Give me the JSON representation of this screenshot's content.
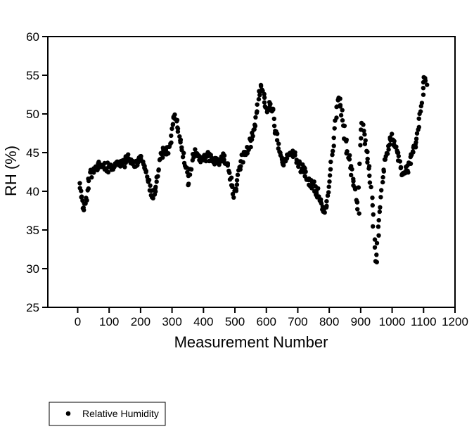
{
  "figure": {
    "background_color": "#ffffff",
    "foreground_color": "#000000"
  },
  "chart_data": {
    "type": "scatter",
    "title": "",
    "xlabel": "Measurement Number",
    "ylabel": "RH (%)",
    "xlim": [
      -95,
      1200
    ],
    "ylim": [
      25,
      60
    ],
    "x_ticks": [
      0,
      100,
      200,
      300,
      400,
      500,
      600,
      700,
      800,
      900,
      1000,
      1100,
      1200
    ],
    "y_ticks": [
      25,
      30,
      35,
      40,
      45,
      50,
      55,
      60
    ],
    "grid": false,
    "marker_color": "#000000",
    "legend": {
      "position": "below-plot-left",
      "entries": [
        {
          "label": "Relative Humidity",
          "marker": "filled-circle",
          "color": "#000000"
        }
      ]
    },
    "series": [
      {
        "name": "Relative Humidity",
        "marker": "filled-circle",
        "color": "#000000",
        "x_range_of_data": [
          5,
          1110
        ],
        "approx_point_count": 1100,
        "trace_comment": "band center trace sampled from plot: [measurement, RH_percent, band_halfwidth_RH]",
        "trace": [
          [
            5,
            41.0,
            1.0
          ],
          [
            10,
            40.0,
            1.6
          ],
          [
            15,
            38.6,
            1.0
          ],
          [
            20,
            37.9,
            0.6
          ],
          [
            25,
            38.4,
            0.8
          ],
          [
            32,
            40.6,
            1.0
          ],
          [
            40,
            42.4,
            0.8
          ],
          [
            50,
            42.6,
            0.8
          ],
          [
            60,
            42.9,
            0.8
          ],
          [
            70,
            43.3,
            0.8
          ],
          [
            80,
            43.3,
            0.8
          ],
          [
            90,
            42.8,
            0.9
          ],
          [
            100,
            43.4,
            0.8
          ],
          [
            110,
            43.1,
            0.8
          ],
          [
            120,
            43.4,
            0.7
          ],
          [
            130,
            43.6,
            0.7
          ],
          [
            140,
            43.3,
            0.7
          ],
          [
            150,
            43.9,
            0.8
          ],
          [
            160,
            44.4,
            0.8
          ],
          [
            170,
            44.0,
            0.7
          ],
          [
            180,
            43.4,
            0.7
          ],
          [
            190,
            43.9,
            0.7
          ],
          [
            198,
            44.5,
            0.6
          ],
          [
            205,
            43.6,
            0.8
          ],
          [
            215,
            42.6,
            0.9
          ],
          [
            225,
            41.0,
            1.0
          ],
          [
            235,
            39.8,
            0.7
          ],
          [
            243,
            39.6,
            0.6
          ],
          [
            250,
            41.0,
            0.9
          ],
          [
            258,
            43.0,
            1.0
          ],
          [
            266,
            44.7,
            0.8
          ],
          [
            273,
            45.3,
            0.7
          ],
          [
            280,
            44.9,
            0.8
          ],
          [
            287,
            45.4,
            0.8
          ],
          [
            293,
            46.4,
            0.8
          ],
          [
            299,
            48.0,
            0.9
          ],
          [
            305,
            49.5,
            0.6
          ],
          [
            309,
            49.8,
            0.5
          ],
          [
            314,
            49.1,
            0.7
          ],
          [
            321,
            47.7,
            0.8
          ],
          [
            328,
            46.3,
            0.7
          ],
          [
            335,
            44.7,
            0.8
          ],
          [
            342,
            42.9,
            0.8
          ],
          [
            350,
            41.2,
            0.8
          ],
          [
            357,
            42.2,
            0.8
          ],
          [
            365,
            44.6,
            1.0
          ],
          [
            375,
            45.0,
            0.8
          ],
          [
            385,
            44.3,
            0.8
          ],
          [
            395,
            44.1,
            0.8
          ],
          [
            405,
            44.4,
            0.8
          ],
          [
            415,
            44.6,
            0.8
          ],
          [
            425,
            44.1,
            0.8
          ],
          [
            435,
            43.8,
            0.8
          ],
          [
            445,
            44.0,
            0.8
          ],
          [
            455,
            44.3,
            0.8
          ],
          [
            465,
            44.2,
            0.8
          ],
          [
            475,
            43.5,
            0.8
          ],
          [
            483,
            42.2,
            0.8
          ],
          [
            490,
            40.7,
            0.8
          ],
          [
            497,
            39.7,
            0.6
          ],
          [
            505,
            40.4,
            0.8
          ],
          [
            512,
            42.1,
            0.8
          ],
          [
            520,
            43.9,
            0.8
          ],
          [
            530,
            44.7,
            0.8
          ],
          [
            540,
            45.2,
            0.8
          ],
          [
            548,
            46.2,
            0.8
          ],
          [
            556,
            47.2,
            0.8
          ],
          [
            563,
            48.4,
            0.9
          ],
          [
            570,
            50.2,
            1.0
          ],
          [
            577,
            52.2,
            1.0
          ],
          [
            583,
            53.1,
            0.7
          ],
          [
            590,
            52.7,
            0.8
          ],
          [
            597,
            51.3,
            0.9
          ],
          [
            604,
            50.5,
            0.8
          ],
          [
            611,
            51.3,
            0.7
          ],
          [
            618,
            50.6,
            0.8
          ],
          [
            625,
            49.0,
            0.8
          ],
          [
            632,
            47.2,
            0.8
          ],
          [
            640,
            45.4,
            0.8
          ],
          [
            648,
            43.9,
            0.8
          ],
          [
            656,
            43.3,
            0.7
          ],
          [
            665,
            44.5,
            0.8
          ],
          [
            675,
            45.0,
            0.8
          ],
          [
            685,
            45.0,
            0.8
          ],
          [
            695,
            44.2,
            0.8
          ],
          [
            705,
            43.3,
            0.8
          ],
          [
            715,
            42.8,
            0.8
          ],
          [
            725,
            42.0,
            0.8
          ],
          [
            735,
            41.2,
            0.8
          ],
          [
            745,
            40.8,
            0.8
          ],
          [
            755,
            40.4,
            0.8
          ],
          [
            765,
            39.7,
            0.8
          ],
          [
            775,
            38.5,
            0.8
          ],
          [
            783,
            37.4,
            0.6
          ],
          [
            790,
            37.8,
            0.5
          ],
          [
            796,
            39.5,
            0.4
          ],
          [
            802,
            41.8,
            0.4
          ],
          [
            808,
            44.2,
            0.4
          ],
          [
            814,
            46.6,
            0.5
          ],
          [
            820,
            49.2,
            0.9
          ],
          [
            827,
            51.8,
            0.9
          ],
          [
            834,
            51.6,
            0.8
          ],
          [
            841,
            49.8,
            1.0
          ],
          [
            849,
            47.3,
            1.0
          ],
          [
            857,
            45.7,
            1.0
          ],
          [
            865,
            44.2,
            1.0
          ],
          [
            872,
            42.7,
            0.9
          ],
          [
            880,
            40.7,
            1.0
          ],
          [
            887,
            38.7,
            0.8
          ],
          [
            893,
            37.2,
            0.5
          ],
          [
            899,
            46.3,
            1.4
          ],
          [
            905,
            48.5,
            1.0
          ],
          [
            911,
            47.3,
            1.0
          ],
          [
            916,
            45.6,
            0.4
          ],
          [
            921,
            44.4,
            0.4
          ],
          [
            926,
            43.1,
            0.4
          ],
          [
            930,
            41.7,
            0.4
          ],
          [
            934,
            40.1,
            0.4
          ],
          [
            937,
            38.2,
            0.4
          ],
          [
            940,
            36.2,
            0.4
          ],
          [
            943,
            34.0,
            0.4
          ],
          [
            946,
            31.8,
            0.4
          ],
          [
            948,
            30.4,
            0.3
          ],
          [
            951,
            31.8,
            0.4
          ],
          [
            954,
            33.8,
            0.4
          ],
          [
            958,
            36.0,
            0.4
          ],
          [
            963,
            38.2,
            0.4
          ],
          [
            968,
            40.6,
            0.4
          ],
          [
            974,
            43.0,
            0.5
          ],
          [
            980,
            44.4,
            0.7
          ],
          [
            987,
            45.6,
            0.8
          ],
          [
            993,
            46.5,
            0.7
          ],
          [
            999,
            46.9,
            0.6
          ],
          [
            1006,
            46.3,
            0.8
          ],
          [
            1013,
            45.2,
            0.8
          ],
          [
            1021,
            44.1,
            0.9
          ],
          [
            1029,
            43.0,
            0.9
          ],
          [
            1037,
            42.3,
            0.9
          ],
          [
            1045,
            42.7,
            0.8
          ],
          [
            1053,
            43.5,
            0.9
          ],
          [
            1061,
            44.4,
            0.9
          ],
          [
            1069,
            45.2,
            0.8
          ],
          [
            1076,
            46.3,
            0.7
          ],
          [
            1082,
            47.7,
            0.5
          ],
          [
            1087,
            49.2,
            0.5
          ],
          [
            1092,
            50.7,
            0.5
          ],
          [
            1096,
            52.0,
            0.6
          ],
          [
            1100,
            53.4,
            0.8
          ],
          [
            1104,
            54.5,
            0.6
          ],
          [
            1107,
            54.3,
            0.5
          ],
          [
            1110,
            53.6,
            0.5
          ]
        ]
      }
    ]
  }
}
